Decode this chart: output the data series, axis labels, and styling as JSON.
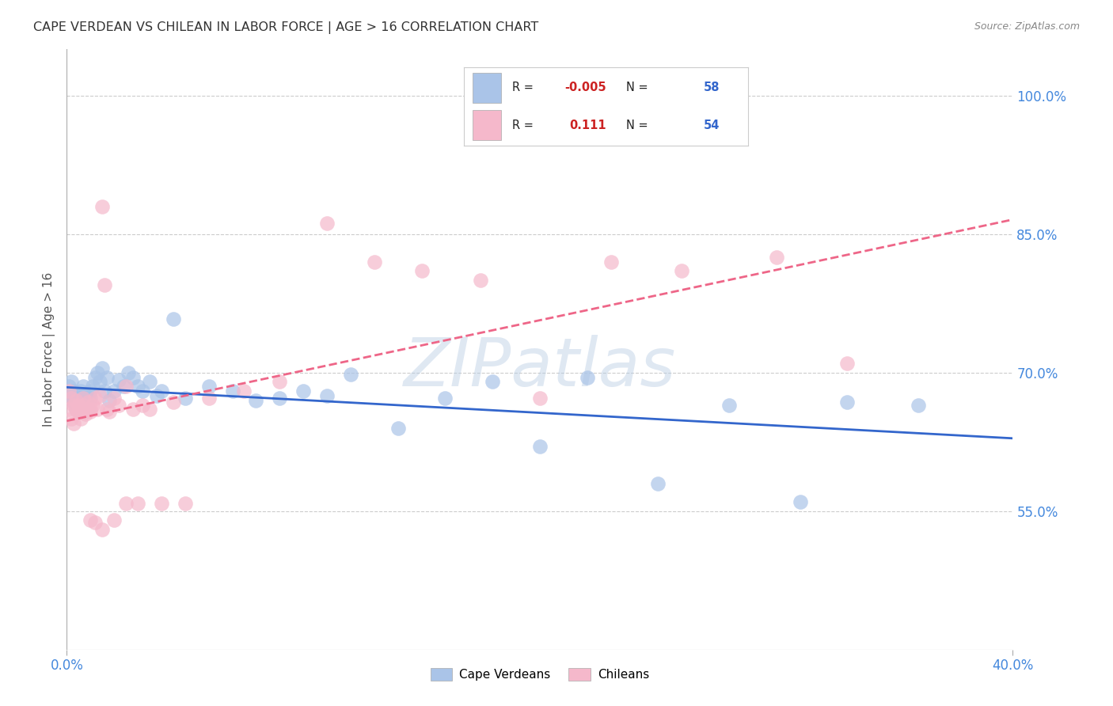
{
  "title": "CAPE VERDEAN VS CHILEAN IN LABOR FORCE | AGE > 16 CORRELATION CHART",
  "source": "Source: ZipAtlas.com",
  "ylabel": "In Labor Force | Age > 16",
  "xlim": [
    0.0,
    0.4
  ],
  "ylim": [
    0.4,
    1.05
  ],
  "ytick_vals": [
    0.55,
    0.7,
    0.85,
    1.0
  ],
  "ytick_labels": [
    "55.0%",
    "70.0%",
    "85.0%",
    "100.0%"
  ],
  "xtick_vals": [
    0.0,
    0.4
  ],
  "xtick_labels": [
    "0.0%",
    "40.0%"
  ],
  "background_color": "#ffffff",
  "grid_color": "#cccccc",
  "title_color": "#333333",
  "tick_color": "#4488dd",
  "watermark": "ZIPatlas",
  "cape_verdean_color": "#aac4e8",
  "chilean_color": "#f5b8cb",
  "cape_verdean_line_color": "#3366cc",
  "chilean_line_color": "#ee6688",
  "legend_r_color": "#cc2222",
  "legend_n_color": "#3366cc",
  "R_cape": -0.005,
  "N_cape": 58,
  "R_chil": 0.111,
  "N_chil": 54,
  "cv_x": [
    0.001,
    0.002,
    0.002,
    0.003,
    0.003,
    0.003,
    0.004,
    0.004,
    0.004,
    0.005,
    0.005,
    0.006,
    0.006,
    0.007,
    0.007,
    0.008,
    0.008,
    0.009,
    0.009,
    0.01,
    0.01,
    0.011,
    0.012,
    0.013,
    0.014,
    0.015,
    0.016,
    0.017,
    0.018,
    0.02,
    0.022,
    0.024,
    0.026,
    0.028,
    0.03,
    0.032,
    0.035,
    0.038,
    0.04,
    0.045,
    0.05,
    0.06,
    0.07,
    0.08,
    0.09,
    0.1,
    0.11,
    0.12,
    0.14,
    0.16,
    0.18,
    0.2,
    0.22,
    0.25,
    0.28,
    0.31,
    0.33,
    0.36
  ],
  "cv_y": [
    0.685,
    0.675,
    0.69,
    0.668,
    0.672,
    0.68,
    0.66,
    0.67,
    0.678,
    0.665,
    0.673,
    0.658,
    0.68,
    0.672,
    0.685,
    0.668,
    0.675,
    0.66,
    0.673,
    0.68,
    0.672,
    0.685,
    0.695,
    0.7,
    0.69,
    0.705,
    0.68,
    0.695,
    0.67,
    0.68,
    0.692,
    0.685,
    0.7,
    0.695,
    0.685,
    0.68,
    0.69,
    0.675,
    0.68,
    0.758,
    0.672,
    0.685,
    0.68,
    0.67,
    0.672,
    0.68,
    0.675,
    0.698,
    0.64,
    0.672,
    0.69,
    0.62,
    0.695,
    0.58,
    0.665,
    0.56,
    0.668,
    0.665
  ],
  "ch_x": [
    0.001,
    0.001,
    0.002,
    0.002,
    0.003,
    0.003,
    0.004,
    0.004,
    0.005,
    0.005,
    0.006,
    0.006,
    0.007,
    0.007,
    0.008,
    0.008,
    0.009,
    0.01,
    0.01,
    0.011,
    0.012,
    0.013,
    0.014,
    0.015,
    0.016,
    0.017,
    0.018,
    0.02,
    0.022,
    0.025,
    0.028,
    0.032,
    0.035,
    0.04,
    0.045,
    0.05,
    0.06,
    0.075,
    0.09,
    0.11,
    0.13,
    0.15,
    0.175,
    0.2,
    0.23,
    0.26,
    0.3,
    0.33,
    0.01,
    0.02,
    0.015,
    0.025,
    0.03,
    0.012
  ],
  "ch_y": [
    0.68,
    0.66,
    0.672,
    0.65,
    0.665,
    0.645,
    0.66,
    0.67,
    0.658,
    0.665,
    0.65,
    0.66,
    0.665,
    0.672,
    0.66,
    0.655,
    0.668,
    0.66,
    0.658,
    0.665,
    0.672,
    0.66,
    0.675,
    0.88,
    0.795,
    0.66,
    0.658,
    0.672,
    0.665,
    0.685,
    0.66,
    0.665,
    0.66,
    0.558,
    0.668,
    0.558,
    0.672,
    0.68,
    0.69,
    0.862,
    0.82,
    0.81,
    0.8,
    0.672,
    0.82,
    0.81,
    0.825,
    0.71,
    0.54,
    0.54,
    0.53,
    0.558,
    0.558,
    0.538
  ]
}
